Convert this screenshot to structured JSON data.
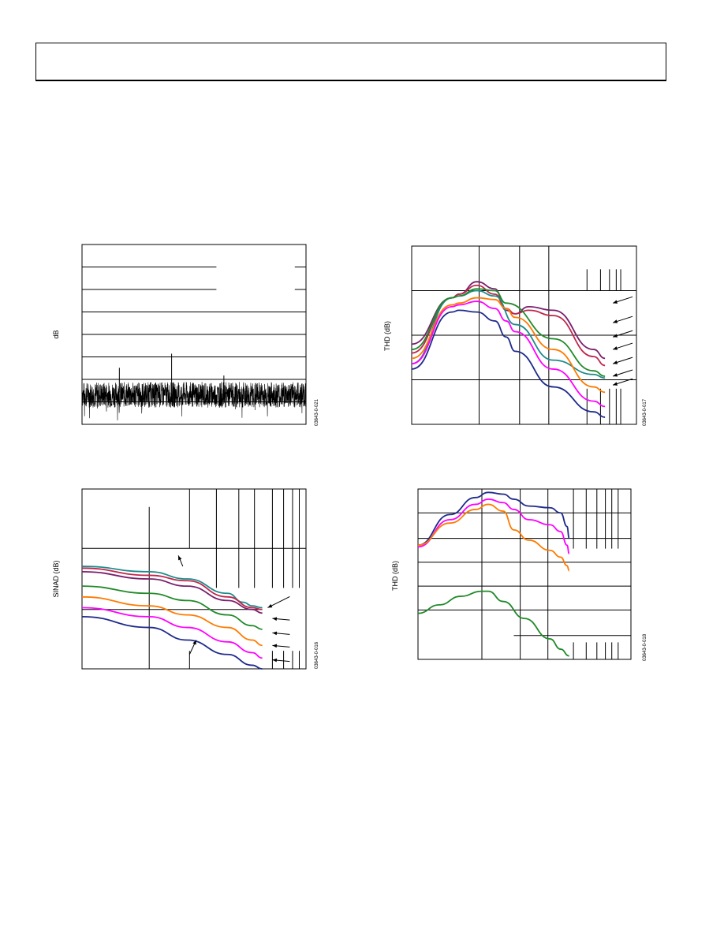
{
  "header": {
    "title": ""
  },
  "chart_data": [
    {
      "id": "fft",
      "type": "line",
      "title": "",
      "xlabel": "",
      "ylabel": "dB",
      "ylim": [
        -140,
        0
      ],
      "grid": true,
      "part_number": "03643-0-021",
      "x_divisions": 5,
      "y_divisions": 8,
      "series": [
        {
          "values": [
            [
              0.0,
              -118
            ],
            [
              0.2,
              -113
            ],
            [
              0.4,
              -120
            ],
            [
              1.0,
              -117
            ],
            [
              2.0,
              -112
            ],
            [
              3.0,
              -118
            ],
            [
              5.0,
              -96
            ],
            [
              7.0,
              -110
            ],
            [
              9.0,
              -109
            ],
            [
              12.0,
              -85
            ],
            [
              14.0,
              -113
            ],
            [
              19.0,
              -102
            ],
            [
              22.0,
              -110
            ],
            [
              26.0,
              -115
            ],
            [
              29.5,
              -117
            ]
          ]
        }
      ]
    },
    {
      "id": "thd_a",
      "type": "line",
      "title": "",
      "xlabel": "",
      "ylabel": "THD (dB)",
      "grid": true,
      "part_number": "03643-0-017",
      "series": [
        {
          "color": "#7a1f6b",
          "values": [
            [
              0.0,
              0.55
            ],
            [
              0.18,
              0.29
            ],
            [
              0.21,
              0.27
            ],
            [
              0.29,
              0.2
            ],
            [
              0.37,
              0.24
            ],
            [
              0.42,
              0.36
            ],
            [
              0.46,
              0.38
            ],
            [
              0.52,
              0.34
            ],
            [
              0.63,
              0.36
            ],
            [
              0.81,
              0.58
            ],
            [
              0.86,
              0.63
            ]
          ]
        },
        {
          "color": "#c0264d",
          "values": [
            [
              0.0,
              0.6
            ],
            [
              0.18,
              0.29
            ],
            [
              0.21,
              0.27
            ],
            [
              0.29,
              0.22
            ],
            [
              0.37,
              0.27
            ],
            [
              0.42,
              0.35
            ],
            [
              0.46,
              0.38
            ],
            [
              0.52,
              0.36
            ],
            [
              0.63,
              0.39
            ],
            [
              0.81,
              0.62
            ],
            [
              0.86,
              0.67
            ]
          ]
        },
        {
          "color": "#1f8a8a",
          "values": [
            [
              0.0,
              0.66
            ],
            [
              0.18,
              0.29
            ],
            [
              0.21,
              0.28
            ],
            [
              0.29,
              0.25
            ],
            [
              0.37,
              0.28
            ],
            [
              0.46,
              0.44
            ],
            [
              0.63,
              0.64
            ],
            [
              0.81,
              0.72
            ],
            [
              0.86,
              0.74
            ]
          ]
        },
        {
          "color": "#208a2a",
          "values": [
            [
              0.0,
              0.58
            ],
            [
              0.18,
              0.29
            ],
            [
              0.21,
              0.28
            ],
            [
              0.29,
              0.24
            ],
            [
              0.37,
              0.25
            ],
            [
              0.42,
              0.32
            ],
            [
              0.63,
              0.52
            ],
            [
              0.81,
              0.7
            ],
            [
              0.86,
              0.73
            ]
          ]
        },
        {
          "color": "#ff7a00",
          "values": [
            [
              0.0,
              0.63
            ],
            [
              0.18,
              0.33
            ],
            [
              0.21,
              0.32
            ],
            [
              0.29,
              0.29
            ],
            [
              0.37,
              0.3
            ],
            [
              0.42,
              0.35
            ],
            [
              0.46,
              0.4
            ],
            [
              0.63,
              0.58
            ],
            [
              0.81,
              0.79
            ],
            [
              0.86,
              0.82
            ]
          ]
        },
        {
          "color": "#ff00ff",
          "values": [
            [
              0.0,
              0.66
            ],
            [
              0.18,
              0.34
            ],
            [
              0.21,
              0.33
            ],
            [
              0.29,
              0.31
            ],
            [
              0.37,
              0.35
            ],
            [
              0.42,
              0.42
            ],
            [
              0.46,
              0.48
            ],
            [
              0.63,
              0.69
            ],
            [
              0.81,
              0.87
            ],
            [
              0.86,
              0.9
            ]
          ]
        },
        {
          "color": "#1f2a8a",
          "values": [
            [
              0.0,
              0.69
            ],
            [
              0.18,
              0.37
            ],
            [
              0.21,
              0.36
            ],
            [
              0.29,
              0.37
            ],
            [
              0.37,
              0.42
            ],
            [
              0.42,
              0.51
            ],
            [
              0.46,
              0.59
            ],
            [
              0.63,
              0.79
            ],
            [
              0.81,
              0.93
            ],
            [
              0.86,
              0.96
            ]
          ]
        }
      ],
      "arrows": [
        [
          0.895,
          0.32
        ],
        [
          0.895,
          0.43
        ],
        [
          0.895,
          0.51
        ],
        [
          0.895,
          0.58
        ],
        [
          0.895,
          0.66
        ],
        [
          0.895,
          0.73
        ],
        [
          0.895,
          0.78
        ]
      ]
    },
    {
      "id": "sinad",
      "type": "line",
      "title": "",
      "xlabel": "",
      "ylabel": "SINAD (dB)",
      "grid": true,
      "part_number": "03643-0-016",
      "series": [
        {
          "color": "#1f8a8a",
          "values": [
            [
              0.0,
              0.43
            ],
            [
              0.3,
              0.46
            ],
            [
              0.47,
              0.5
            ],
            [
              0.65,
              0.58
            ],
            [
              0.72,
              0.63
            ],
            [
              0.76,
              0.65
            ],
            [
              0.805,
              0.66
            ]
          ]
        },
        {
          "color": "#c0264d",
          "values": [
            [
              0.0,
              0.44
            ],
            [
              0.3,
              0.48
            ],
            [
              0.47,
              0.51
            ],
            [
              0.65,
              0.6
            ],
            [
              0.76,
              0.66
            ],
            [
              0.805,
              0.67
            ]
          ]
        },
        {
          "color": "#7a1f6b",
          "values": [
            [
              0.0,
              0.46
            ],
            [
              0.3,
              0.5
            ],
            [
              0.47,
              0.54
            ],
            [
              0.65,
              0.62
            ],
            [
              0.76,
              0.67
            ],
            [
              0.805,
              0.69
            ]
          ]
        },
        {
          "color": "#208a2a",
          "values": [
            [
              0.0,
              0.54
            ],
            [
              0.3,
              0.58
            ],
            [
              0.47,
              0.62
            ],
            [
              0.65,
              0.7
            ],
            [
              0.76,
              0.76
            ],
            [
              0.805,
              0.78
            ]
          ]
        },
        {
          "color": "#ff7a00",
          "values": [
            [
              0.0,
              0.6
            ],
            [
              0.3,
              0.65
            ],
            [
              0.47,
              0.7
            ],
            [
              0.65,
              0.77
            ],
            [
              0.76,
              0.84
            ],
            [
              0.805,
              0.87
            ]
          ]
        },
        {
          "color": "#ff00ff",
          "values": [
            [
              0.0,
              0.66
            ],
            [
              0.3,
              0.71
            ],
            [
              0.47,
              0.77
            ],
            [
              0.65,
              0.85
            ],
            [
              0.76,
              0.91
            ],
            [
              0.805,
              0.94
            ]
          ]
        },
        {
          "color": "#1f2a8a",
          "values": [
            [
              0.0,
              0.71
            ],
            [
              0.3,
              0.77
            ],
            [
              0.47,
              0.84
            ],
            [
              0.65,
              0.92
            ],
            [
              0.76,
              0.98
            ],
            [
              0.805,
              1.0
            ]
          ]
        }
      ],
      "arrows": [
        [
          0.85,
          0.66
        ],
        [
          0.85,
          0.72
        ],
        [
          0.85,
          0.8
        ],
        [
          0.85,
          0.87
        ],
        [
          0.85,
          0.95
        ]
      ]
    },
    {
      "id": "thd_b",
      "type": "line",
      "title": "",
      "xlabel": "",
      "ylabel": "THD (dB)",
      "grid": true,
      "part_number": "03643-0-018",
      "series": [
        {
          "color": "#1f2a8a",
          "values": [
            [
              0.0,
              0.33
            ],
            [
              0.15,
              0.15
            ],
            [
              0.27,
              0.05
            ],
            [
              0.33,
              0.02
            ],
            [
              0.4,
              0.03
            ],
            [
              0.45,
              0.06
            ],
            [
              0.52,
              0.1
            ],
            [
              0.62,
              0.11
            ],
            [
              0.67,
              0.14
            ],
            [
              0.7,
              0.22
            ],
            [
              0.71,
              0.29
            ]
          ]
        },
        {
          "color": "#ff00ff",
          "values": [
            [
              0.0,
              0.34
            ],
            [
              0.15,
              0.18
            ],
            [
              0.27,
              0.09
            ],
            [
              0.33,
              0.06
            ],
            [
              0.4,
              0.08
            ],
            [
              0.45,
              0.12
            ],
            [
              0.52,
              0.18
            ],
            [
              0.62,
              0.21
            ],
            [
              0.67,
              0.25
            ],
            [
              0.7,
              0.33
            ],
            [
              0.71,
              0.38
            ]
          ]
        },
        {
          "color": "#ff7a00",
          "values": [
            [
              0.0,
              0.33
            ],
            [
              0.15,
              0.2
            ],
            [
              0.27,
              0.12
            ],
            [
              0.33,
              0.09
            ],
            [
              0.4,
              0.13
            ],
            [
              0.45,
              0.24
            ],
            [
              0.52,
              0.3
            ],
            [
              0.62,
              0.36
            ],
            [
              0.67,
              0.4
            ],
            [
              0.7,
              0.45
            ],
            [
              0.71,
              0.48
            ]
          ]
        },
        {
          "color": "#208a2a",
          "values": [
            [
              0.0,
              0.73
            ],
            [
              0.1,
              0.68
            ],
            [
              0.2,
              0.63
            ],
            [
              0.3,
              0.6
            ],
            [
              0.33,
              0.6
            ],
            [
              0.4,
              0.66
            ],
            [
              0.5,
              0.76
            ],
            [
              0.62,
              0.88
            ],
            [
              0.67,
              0.94
            ],
            [
              0.71,
              0.98
            ]
          ]
        }
      ]
    }
  ]
}
